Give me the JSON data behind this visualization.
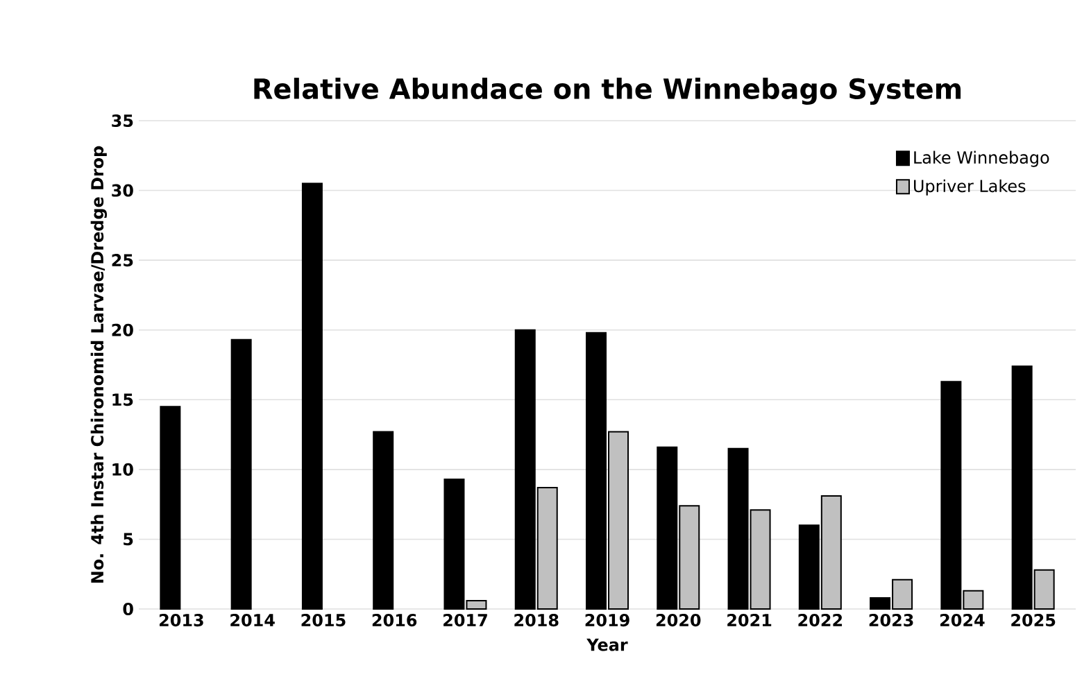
{
  "chart_data": {
    "type": "bar",
    "title": "Relative Abundace on the Winnebago System",
    "xlabel": "Year",
    "ylabel": "No. 4th Instar Chironomid Larvae/Dredge Drop",
    "categories": [
      "2013",
      "2014",
      "2015",
      "2016",
      "2017",
      "2018",
      "2019",
      "2020",
      "2021",
      "2022",
      "2023",
      "2024",
      "2025"
    ],
    "series": [
      {
        "name": "Lake Winnebago",
        "color": "#000000",
        "values": [
          14.5,
          19.3,
          30.5,
          12.7,
          9.3,
          20.0,
          19.8,
          11.6,
          11.5,
          6.0,
          0.8,
          16.3,
          17.4
        ]
      },
      {
        "name": "Upriver Lakes",
        "color": "#c0c0c0",
        "values": [
          null,
          null,
          null,
          null,
          0.6,
          8.7,
          12.7,
          7.4,
          7.1,
          8.1,
          2.1,
          1.3,
          2.8
        ]
      }
    ],
    "ylim": [
      0,
      35
    ],
    "yticks": [
      0,
      5,
      10,
      15,
      20,
      25,
      30,
      35
    ],
    "grid": "y",
    "legend": "top right"
  }
}
